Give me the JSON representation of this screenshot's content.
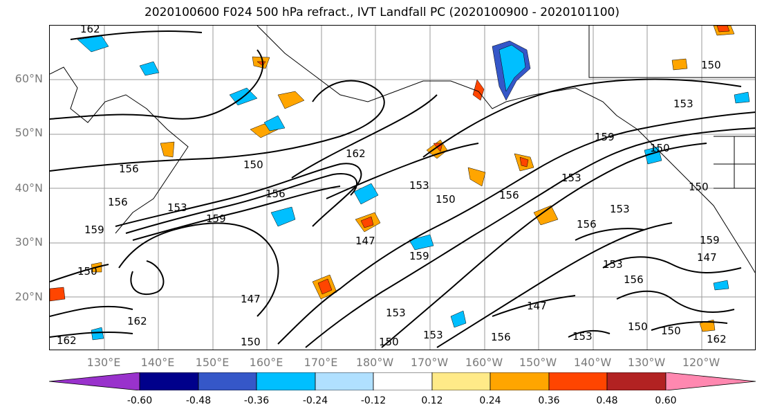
{
  "title": "2020100600 F024 500 hPa refract., IVT Landfall PC (2020100900 - 2020101100)",
  "lat_labels": [
    "60°N",
    "50°N",
    "40°N",
    "30°N",
    "20°N"
  ],
  "lon_labels": [
    "130°E",
    "140°E",
    "150°E",
    "160°E",
    "170°E",
    "180°W",
    "170°W",
    "160°W",
    "150°W",
    "140°W",
    "130°W",
    "120°W"
  ],
  "colorbar": {
    "ticks": [
      "-0.60",
      "-0.48",
      "-0.36",
      "-0.24",
      "-0.12",
      "0.12",
      "0.24",
      "0.36",
      "0.48",
      "0.60"
    ],
    "colors": [
      "#9932cc",
      "#00008b",
      "#3557c8",
      "#00bfff",
      "#b0e0ff",
      "#ffffff",
      "#ffea88",
      "#ffa500",
      "#ff4500",
      "#b22222",
      "#ff88b0"
    ]
  },
  "contour_labels": [
    "162",
    "156",
    "150",
    "156",
    "153",
    "159",
    "156",
    "162",
    "153",
    "150",
    "159",
    "150",
    "153",
    "153",
    "150",
    "156",
    "153",
    "156",
    "159",
    "147",
    "147",
    "153",
    "147",
    "150",
    "150",
    "153",
    "156",
    "153",
    "150",
    "159",
    "162",
    "159",
    "153",
    "150",
    "147",
    "150",
    "156",
    "162",
    "162",
    "150"
  ]
}
